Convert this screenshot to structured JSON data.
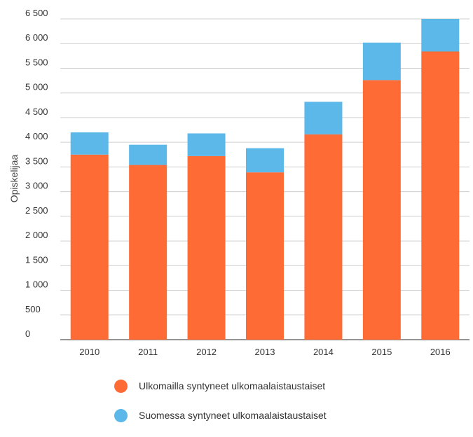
{
  "chart_data": {
    "type": "bar",
    "stacked": true,
    "categories": [
      "2010",
      "2011",
      "2012",
      "2013",
      "2014",
      "2015",
      "2016"
    ],
    "series": [
      {
        "name": "Ulkomailla syntyneet ulkomaalaistaustaiset",
        "color": "#ff6b35",
        "values": [
          3750,
          3540,
          3720,
          3390,
          4160,
          5260,
          5840
        ]
      },
      {
        "name": "Suomessa syntyneet ulkomaalaistaustaiset",
        "color": "#5bb8e8",
        "values": [
          450,
          410,
          460,
          490,
          660,
          760,
          660
        ]
      }
    ],
    "ylabel": "Opiskelijaa",
    "xlabel": "",
    "ylim": [
      0,
      6500
    ],
    "yticks": [
      0,
      500,
      1000,
      1500,
      2000,
      2500,
      3000,
      3500,
      4000,
      4500,
      5000,
      5500,
      6000,
      6500
    ],
    "ytick_labels": [
      "0",
      "500",
      "1 000",
      "1 500",
      "2 000",
      "2 500",
      "3 000",
      "3 500",
      "4 000",
      "4 500",
      "5 000",
      "5 500",
      "6 000",
      "6 500"
    ],
    "grid": true,
    "legend": "bottom"
  }
}
